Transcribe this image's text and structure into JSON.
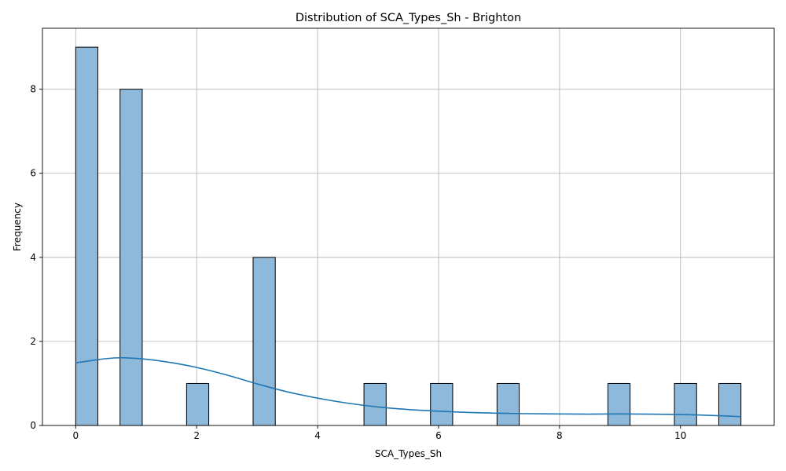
{
  "chart_data": {
    "type": "bar",
    "title": "Distribution of SCA_Types_Sh - Brighton",
    "xlabel": "SCA_Types_Sh",
    "ylabel": "Frequency",
    "xlim": [
      -0.55,
      11.55
    ],
    "ylim": [
      0,
      9.45
    ],
    "x_ticks": [
      0,
      2,
      4,
      6,
      8,
      10
    ],
    "y_ticks": [
      0,
      2,
      4,
      6,
      8
    ],
    "grid": true,
    "bin_width": 0.3667,
    "bins": [
      {
        "x0": 0.0,
        "count": 9
      },
      {
        "x0": 0.7333,
        "count": 8
      },
      {
        "x0": 1.8333,
        "count": 1
      },
      {
        "x0": 2.9333,
        "count": 4
      },
      {
        "x0": 4.7667,
        "count": 1
      },
      {
        "x0": 5.8667,
        "count": 1
      },
      {
        "x0": 6.9667,
        "count": 1
      },
      {
        "x0": 8.8,
        "count": 1
      },
      {
        "x0": 9.9,
        "count": 1
      },
      {
        "x0": 10.6333,
        "count": 1
      }
    ],
    "kde": {
      "x": [
        0,
        0.5,
        0.8,
        1.2,
        1.6,
        2.0,
        2.5,
        3.0,
        3.5,
        4.0,
        4.5,
        5.0,
        5.5,
        6.0,
        6.5,
        7.0,
        7.5,
        8.0,
        8.5,
        9.0,
        9.5,
        10.0,
        10.5,
        11.0
      ],
      "y": [
        1.49,
        1.59,
        1.61,
        1.57,
        1.49,
        1.38,
        1.2,
        0.99,
        0.8,
        0.65,
        0.53,
        0.44,
        0.38,
        0.34,
        0.31,
        0.29,
        0.28,
        0.275,
        0.27,
        0.275,
        0.27,
        0.26,
        0.24,
        0.21
      ]
    },
    "colors": {
      "bar_fill": "#8fb9db",
      "bar_edge": "#000000",
      "kde_line": "#1f77b4",
      "grid": "#b0b0b0"
    }
  }
}
